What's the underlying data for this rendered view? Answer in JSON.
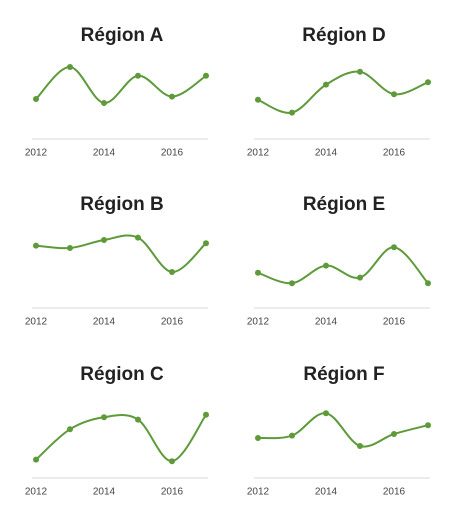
{
  "chart_data": [
    {
      "type": "line",
      "title": "Région A",
      "x": [
        2012,
        2013,
        2014,
        2015,
        2016,
        2017
      ],
      "values": [
        50,
        90,
        45,
        79,
        53,
        79
      ],
      "xlim": [
        2012,
        2017
      ],
      "xticks": [
        2012,
        2014,
        2016
      ],
      "ylim": [
        0,
        100
      ],
      "color": "#5e9a3a"
    },
    {
      "type": "line",
      "title": "Région D",
      "x": [
        2012,
        2013,
        2014,
        2015,
        2016,
        2017
      ],
      "values": [
        49,
        33,
        68,
        84,
        56,
        71
      ],
      "xlim": [
        2012,
        2017
      ],
      "xticks": [
        2012,
        2014,
        2016
      ],
      "ylim": [
        0,
        100
      ],
      "color": "#5e9a3a"
    },
    {
      "type": "line",
      "title": "Région B",
      "x": [
        2012,
        2013,
        2014,
        2015,
        2016,
        2017
      ],
      "values": [
        78,
        75,
        85,
        88,
        45,
        81
      ],
      "xlim": [
        2012,
        2017
      ],
      "xticks": [
        2012,
        2014,
        2016
      ],
      "ylim": [
        0,
        100
      ],
      "color": "#5e9a3a"
    },
    {
      "type": "line",
      "title": "Région E",
      "x": [
        2012,
        2013,
        2014,
        2015,
        2016,
        2017
      ],
      "values": [
        44,
        31,
        53,
        38,
        76,
        31
      ],
      "xlim": [
        2012,
        2017
      ],
      "xticks": [
        2012,
        2014,
        2016
      ],
      "ylim": [
        0,
        100
      ],
      "color": "#5e9a3a"
    },
    {
      "type": "line",
      "title": "Région C",
      "x": [
        2012,
        2013,
        2014,
        2015,
        2016,
        2017
      ],
      "values": [
        23,
        61,
        76,
        73,
        21,
        79
      ],
      "xlim": [
        2012,
        2017
      ],
      "xticks": [
        2012,
        2014,
        2016
      ],
      "ylim": [
        0,
        100
      ],
      "color": "#5e9a3a"
    },
    {
      "type": "line",
      "title": "Région F",
      "x": [
        2012,
        2013,
        2014,
        2015,
        2016,
        2017
      ],
      "values": [
        50,
        53,
        81,
        40,
        55,
        66
      ],
      "xlim": [
        2012,
        2017
      ],
      "xticks": [
        2012,
        2014,
        2016
      ],
      "ylim": [
        0,
        100
      ],
      "color": "#5e9a3a"
    }
  ]
}
